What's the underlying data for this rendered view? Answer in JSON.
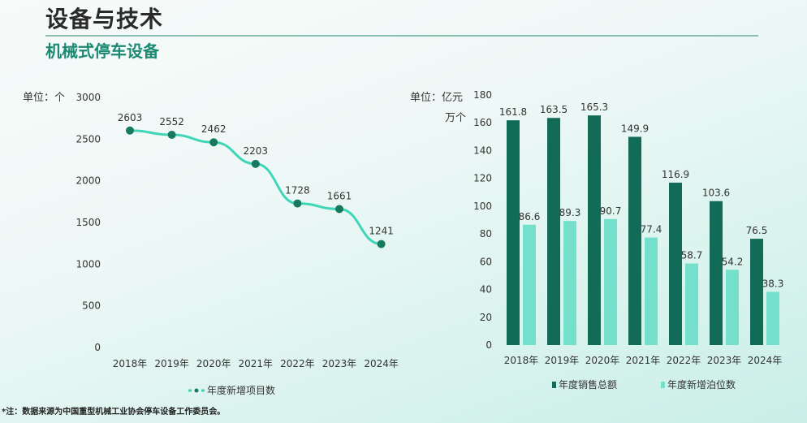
{
  "header": {
    "title": "设备与技术",
    "subtitle": "机械式停车设备"
  },
  "note": "*注：数据来源为中国重型机械工业协会停车设备工作委员会。",
  "colors": {
    "line": "#3fd6b8",
    "point": "#157a5e",
    "dark_bar": "#116b56",
    "light_bar": "#74e0cc",
    "accent": "#1c8a72"
  },
  "chart_data": [
    {
      "type": "line",
      "unit_label": "单位：个",
      "categories": [
        "2018年",
        "2019年",
        "2020年",
        "2021年",
        "2022年",
        "2023年",
        "2024年"
      ],
      "series": [
        {
          "name": "年度新增项目数",
          "values": [
            2603,
            2552,
            2462,
            2203,
            1728,
            1661,
            1241
          ]
        }
      ],
      "ylim": [
        0,
        3000
      ],
      "yticks": [
        0,
        500,
        1000,
        1500,
        2000,
        2500,
        3000
      ],
      "grid": false,
      "legend": "bottom"
    },
    {
      "type": "bar",
      "unit_label": [
        "单位：亿元",
        "万个"
      ],
      "categories": [
        "2018年",
        "2019年",
        "2020年",
        "2021年",
        "2022年",
        "2023年",
        "2024年"
      ],
      "series": [
        {
          "name": "年度销售总额",
          "values": [
            161.8,
            163.5,
            165.3,
            149.9,
            116.9,
            103.6,
            76.5
          ]
        },
        {
          "name": "年度新增泊位数",
          "values": [
            86.6,
            89.3,
            90.7,
            77.4,
            58.7,
            54.2,
            38.3
          ]
        }
      ],
      "ylim": [
        0,
        180
      ],
      "yticks": [
        0,
        20,
        40,
        60,
        80,
        100,
        120,
        140,
        160,
        180
      ],
      "grid": false,
      "legend": "bottom"
    }
  ]
}
